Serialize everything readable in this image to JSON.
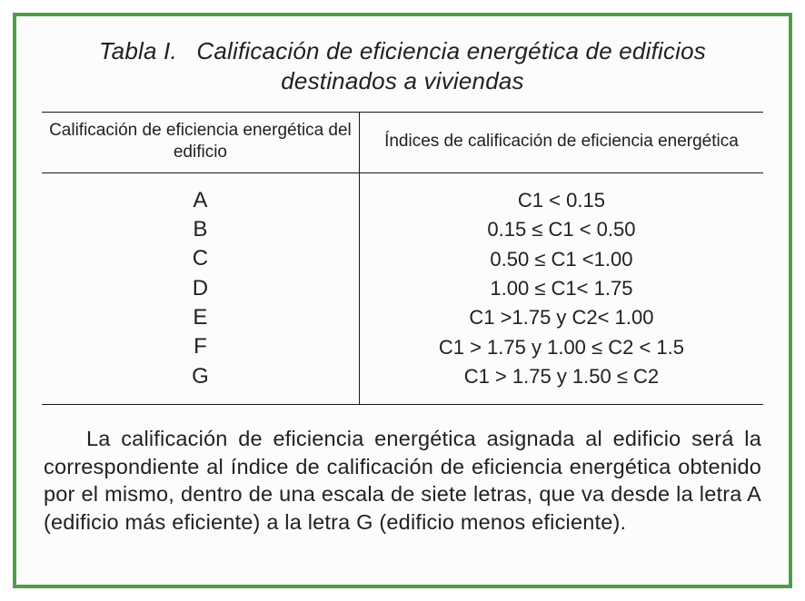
{
  "colors": {
    "frame_border": "#4f9d49",
    "page_background": "#fcfcfb",
    "text": "#212121",
    "rule": "#1a1a1a"
  },
  "title": {
    "label": "Tabla I.",
    "text": "Calificación de eficiencia energética de edificios destinados a viviendas"
  },
  "table": {
    "columns": [
      "Calificación de eficiencia energética del edificio",
      "Índices de calificación de eficiencia energética"
    ],
    "rows": [
      [
        "A",
        "C1 < 0.15"
      ],
      [
        "B",
        "0.15 ≤ C1 < 0.50"
      ],
      [
        "C",
        "0.50 ≤ C1 <1.00"
      ],
      [
        "D",
        "1.00 ≤ C1< 1.75"
      ],
      [
        "E",
        "C1 >1.75 y  C2< 1.00"
      ],
      [
        "F",
        "C1 > 1.75 y  1.00 ≤ C2 < 1.5"
      ],
      [
        "G",
        "C1 > 1.75 y 1.50 ≤ C2"
      ]
    ]
  },
  "paragraph": "La calificación de eficiencia energética asignada al edificio será la correspondiente al índice de calificación de eficiencia energética obtenido por el mismo,  dentro de una escala de siete letras, que va desde la letra A (edificio más eficiente) a la letra G (edificio menos eficiente)."
}
